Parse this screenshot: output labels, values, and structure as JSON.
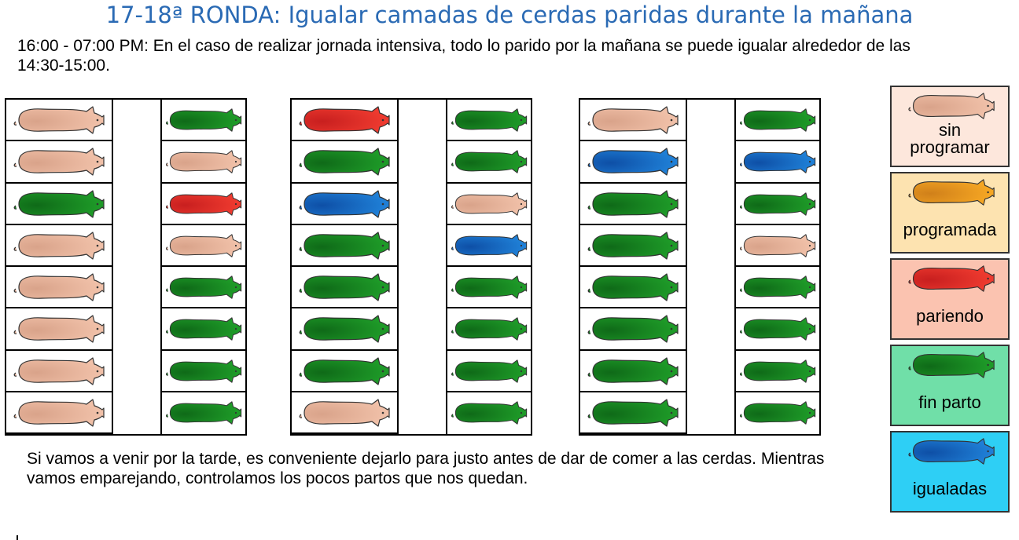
{
  "title": "17-18ª RONDA: Igualar camadas de cerdas paridas durante la mañana",
  "intro": "16:00 - 07:00 PM: En el caso de realizar jornada intensiva, todo lo parido por la mañana se puede igualar alrededor de las 14:30-15:00.",
  "footer": "Si vamos a venir por la tarde, es conveniente dejarlo para justo antes de dar de comer a las cerdas. Mientras vamos emparejando, controlamos los pocos partos que nos quedan.",
  "legend": [
    {
      "key": "sin",
      "label": "sin programar",
      "color": "#f0c0a8",
      "bg": "#fde7dc"
    },
    {
      "key": "prog",
      "label": "programada",
      "color": "#f5a623",
      "bg": "#fde3b0"
    },
    {
      "key": "par",
      "label": "pariendo",
      "color": "#ee3a2f",
      "bg": "#fbc3b0"
    },
    {
      "key": "fin",
      "label": "fin parto",
      "color": "#1e9a28",
      "bg": "#70dfa8"
    },
    {
      "key": "igu",
      "label": "igualadas",
      "color": "#1f7fd6",
      "bg": "#2ecff5"
    }
  ],
  "pens": [
    {
      "left": [
        "sin",
        "sin",
        "fin",
        "sin",
        "sin",
        "sin",
        "sin",
        "sin"
      ],
      "right": [
        "fin",
        "sin",
        "par",
        "sin",
        "fin",
        "fin",
        "fin",
        "fin"
      ]
    },
    {
      "left": [
        "par",
        "fin",
        "igu",
        "fin",
        "fin",
        "fin",
        "fin",
        "sin"
      ],
      "right": [
        "fin",
        "fin",
        "sin",
        "igu",
        "fin",
        "fin",
        "fin",
        "fin"
      ]
    },
    {
      "left": [
        "sin",
        "igu",
        "fin",
        "fin",
        "fin",
        "fin",
        "fin",
        "fin"
      ],
      "right": [
        "fin",
        "igu",
        "fin",
        "sin",
        "fin",
        "fin",
        "fin",
        "fin"
      ]
    }
  ]
}
